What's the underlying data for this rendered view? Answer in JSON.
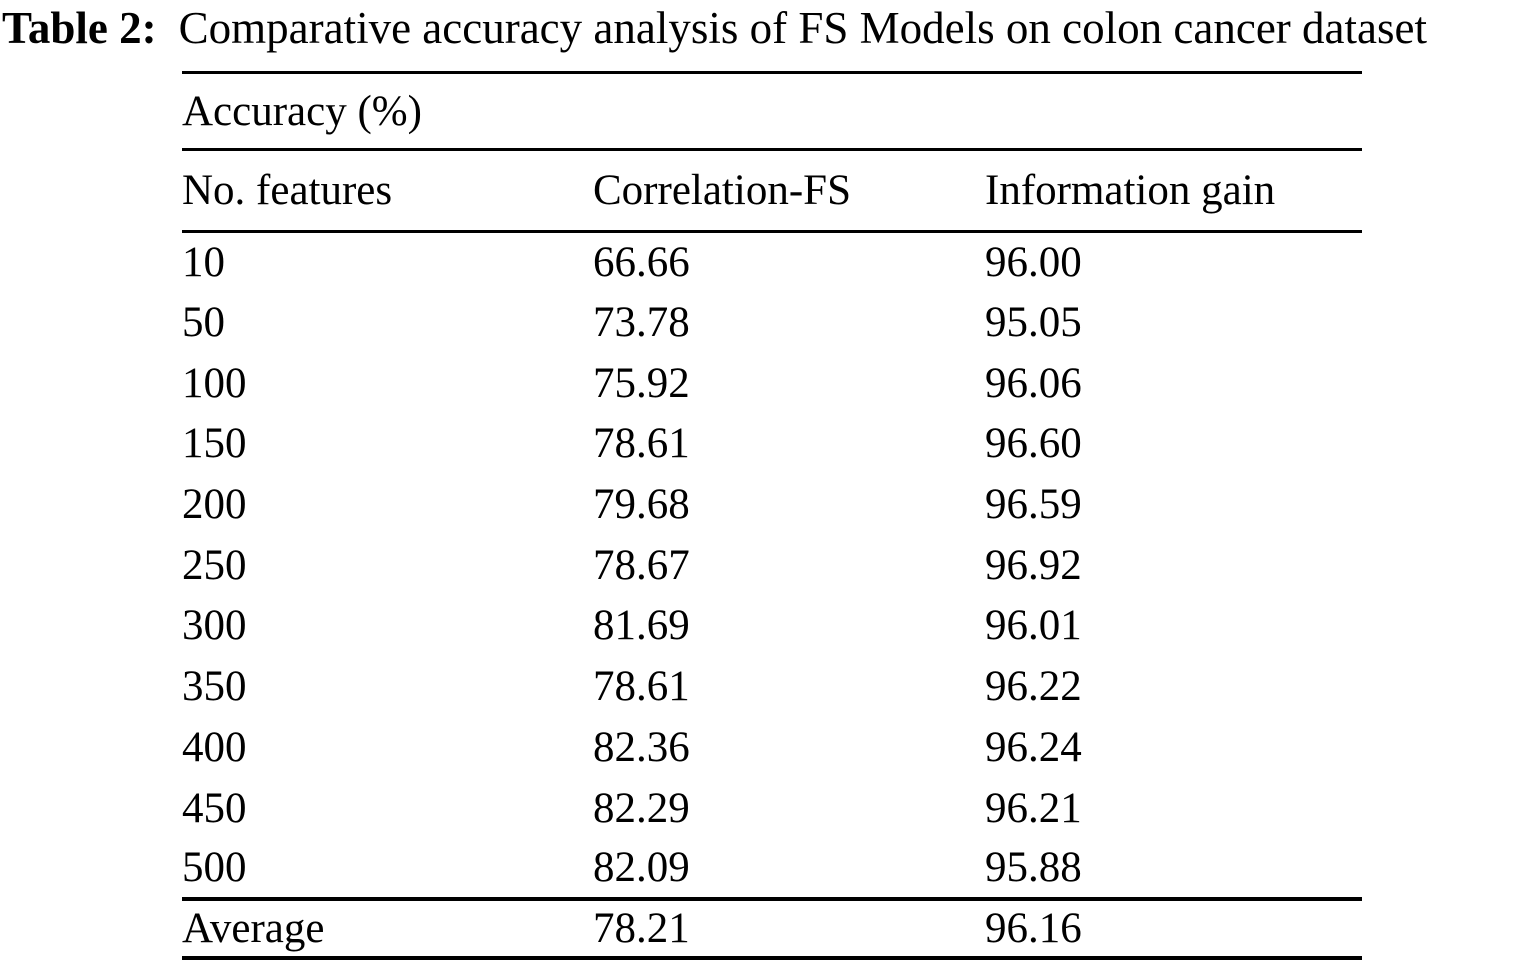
{
  "caption": {
    "label": "Table 2:",
    "text": "Comparative accuracy analysis of FS Models on colon cancer dataset"
  },
  "table": {
    "group_header": "Accuracy (%)",
    "columns": [
      "No. features",
      "Correlation-FS",
      "Information gain"
    ],
    "rows": [
      [
        "10",
        "66.66",
        "96.00"
      ],
      [
        "50",
        "73.78",
        "95.05"
      ],
      [
        "100",
        "75.92",
        "96.06"
      ],
      [
        "150",
        "78.61",
        "96.60"
      ],
      [
        "200",
        "79.68",
        "96.59"
      ],
      [
        "250",
        "78.67",
        "96.92"
      ],
      [
        "300",
        "81.69",
        "96.01"
      ],
      [
        "350",
        "78.61",
        "96.22"
      ],
      [
        "400",
        "82.36",
        "96.24"
      ],
      [
        "450",
        "82.29",
        "96.21"
      ],
      [
        "500",
        "82.09",
        "95.88"
      ]
    ],
    "footer": [
      "Average",
      "78.21",
      "96.16"
    ]
  }
}
